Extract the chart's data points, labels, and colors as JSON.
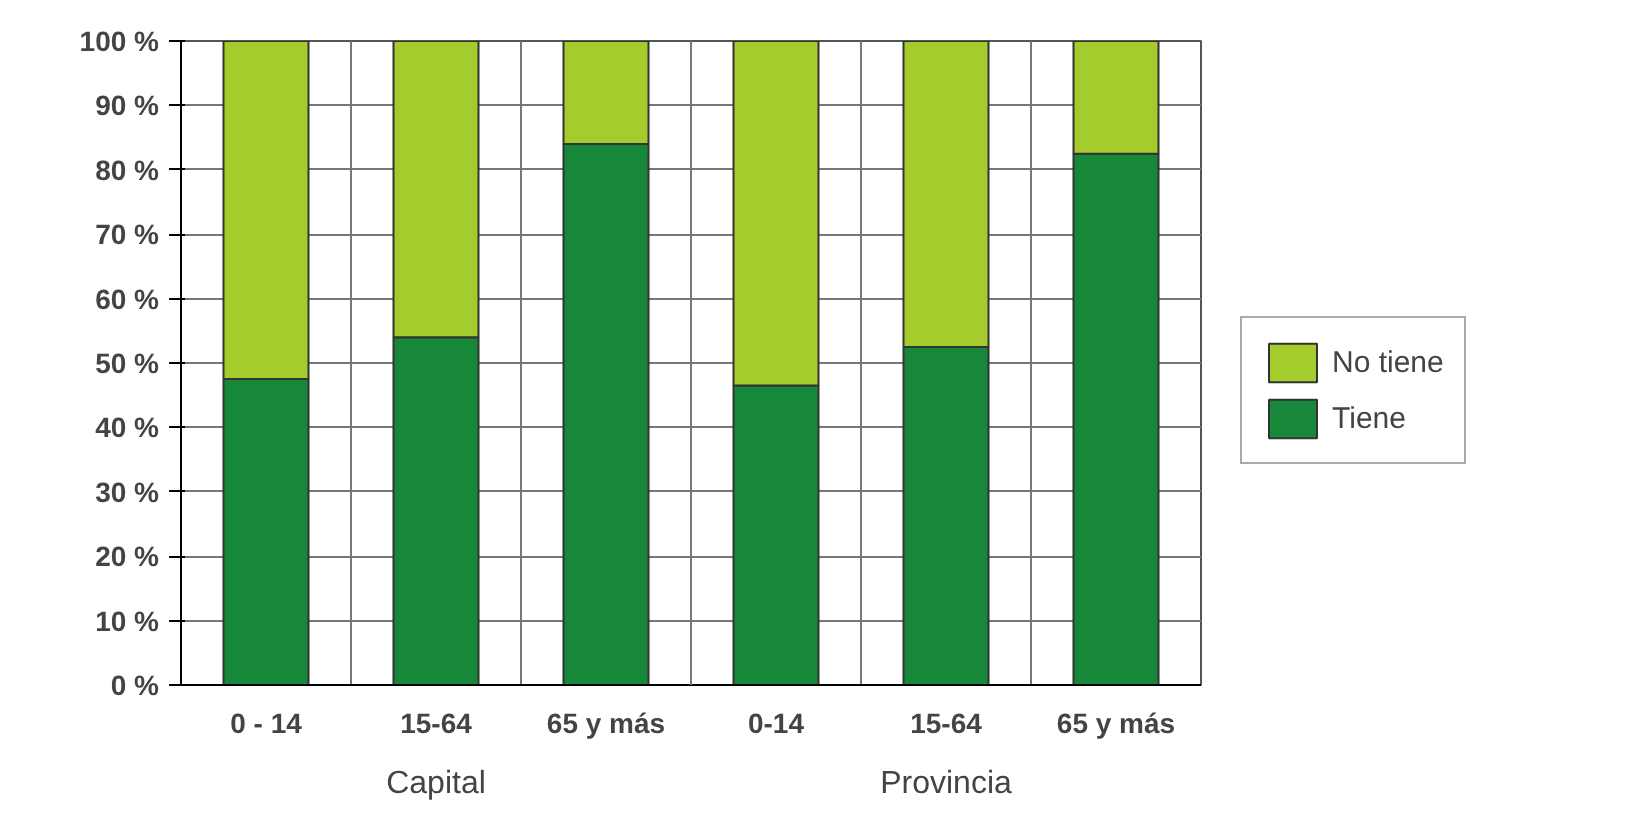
{
  "chart_data": {
    "type": "bar",
    "stacked": true,
    "categories": [
      "0 - 14",
      "15-64",
      "65 y más",
      "0-14",
      "15-64",
      "65 y más"
    ],
    "series": [
      {
        "name": "Tiene",
        "color": "#17883a",
        "values": [
          47.5,
          54,
          84,
          46.5,
          52.5,
          82.5
        ]
      },
      {
        "name": "No tiene",
        "color": "#a4cc2c",
        "values": [
          52.5,
          46,
          16,
          53.5,
          47.5,
          17.5
        ]
      }
    ],
    "ylim": [
      0,
      100
    ],
    "yticks": [
      {
        "value": 0,
        "label": "0 %"
      },
      {
        "value": 10,
        "label": "10 %"
      },
      {
        "value": 20,
        "label": "20 %"
      },
      {
        "value": 30,
        "label": "30 %"
      },
      {
        "value": 40,
        "label": "40 %"
      },
      {
        "value": 50,
        "label": "50 %"
      },
      {
        "value": 60,
        "label": "60 %"
      },
      {
        "value": 70,
        "label": "70 %"
      },
      {
        "value": 80,
        "label": "80 %"
      },
      {
        "value": 90,
        "label": "90 %"
      },
      {
        "value": 100,
        "label": "100 %"
      }
    ],
    "annotations": [
      "Capital",
      "Provincia"
    ],
    "grid": true,
    "legend": "right"
  }
}
